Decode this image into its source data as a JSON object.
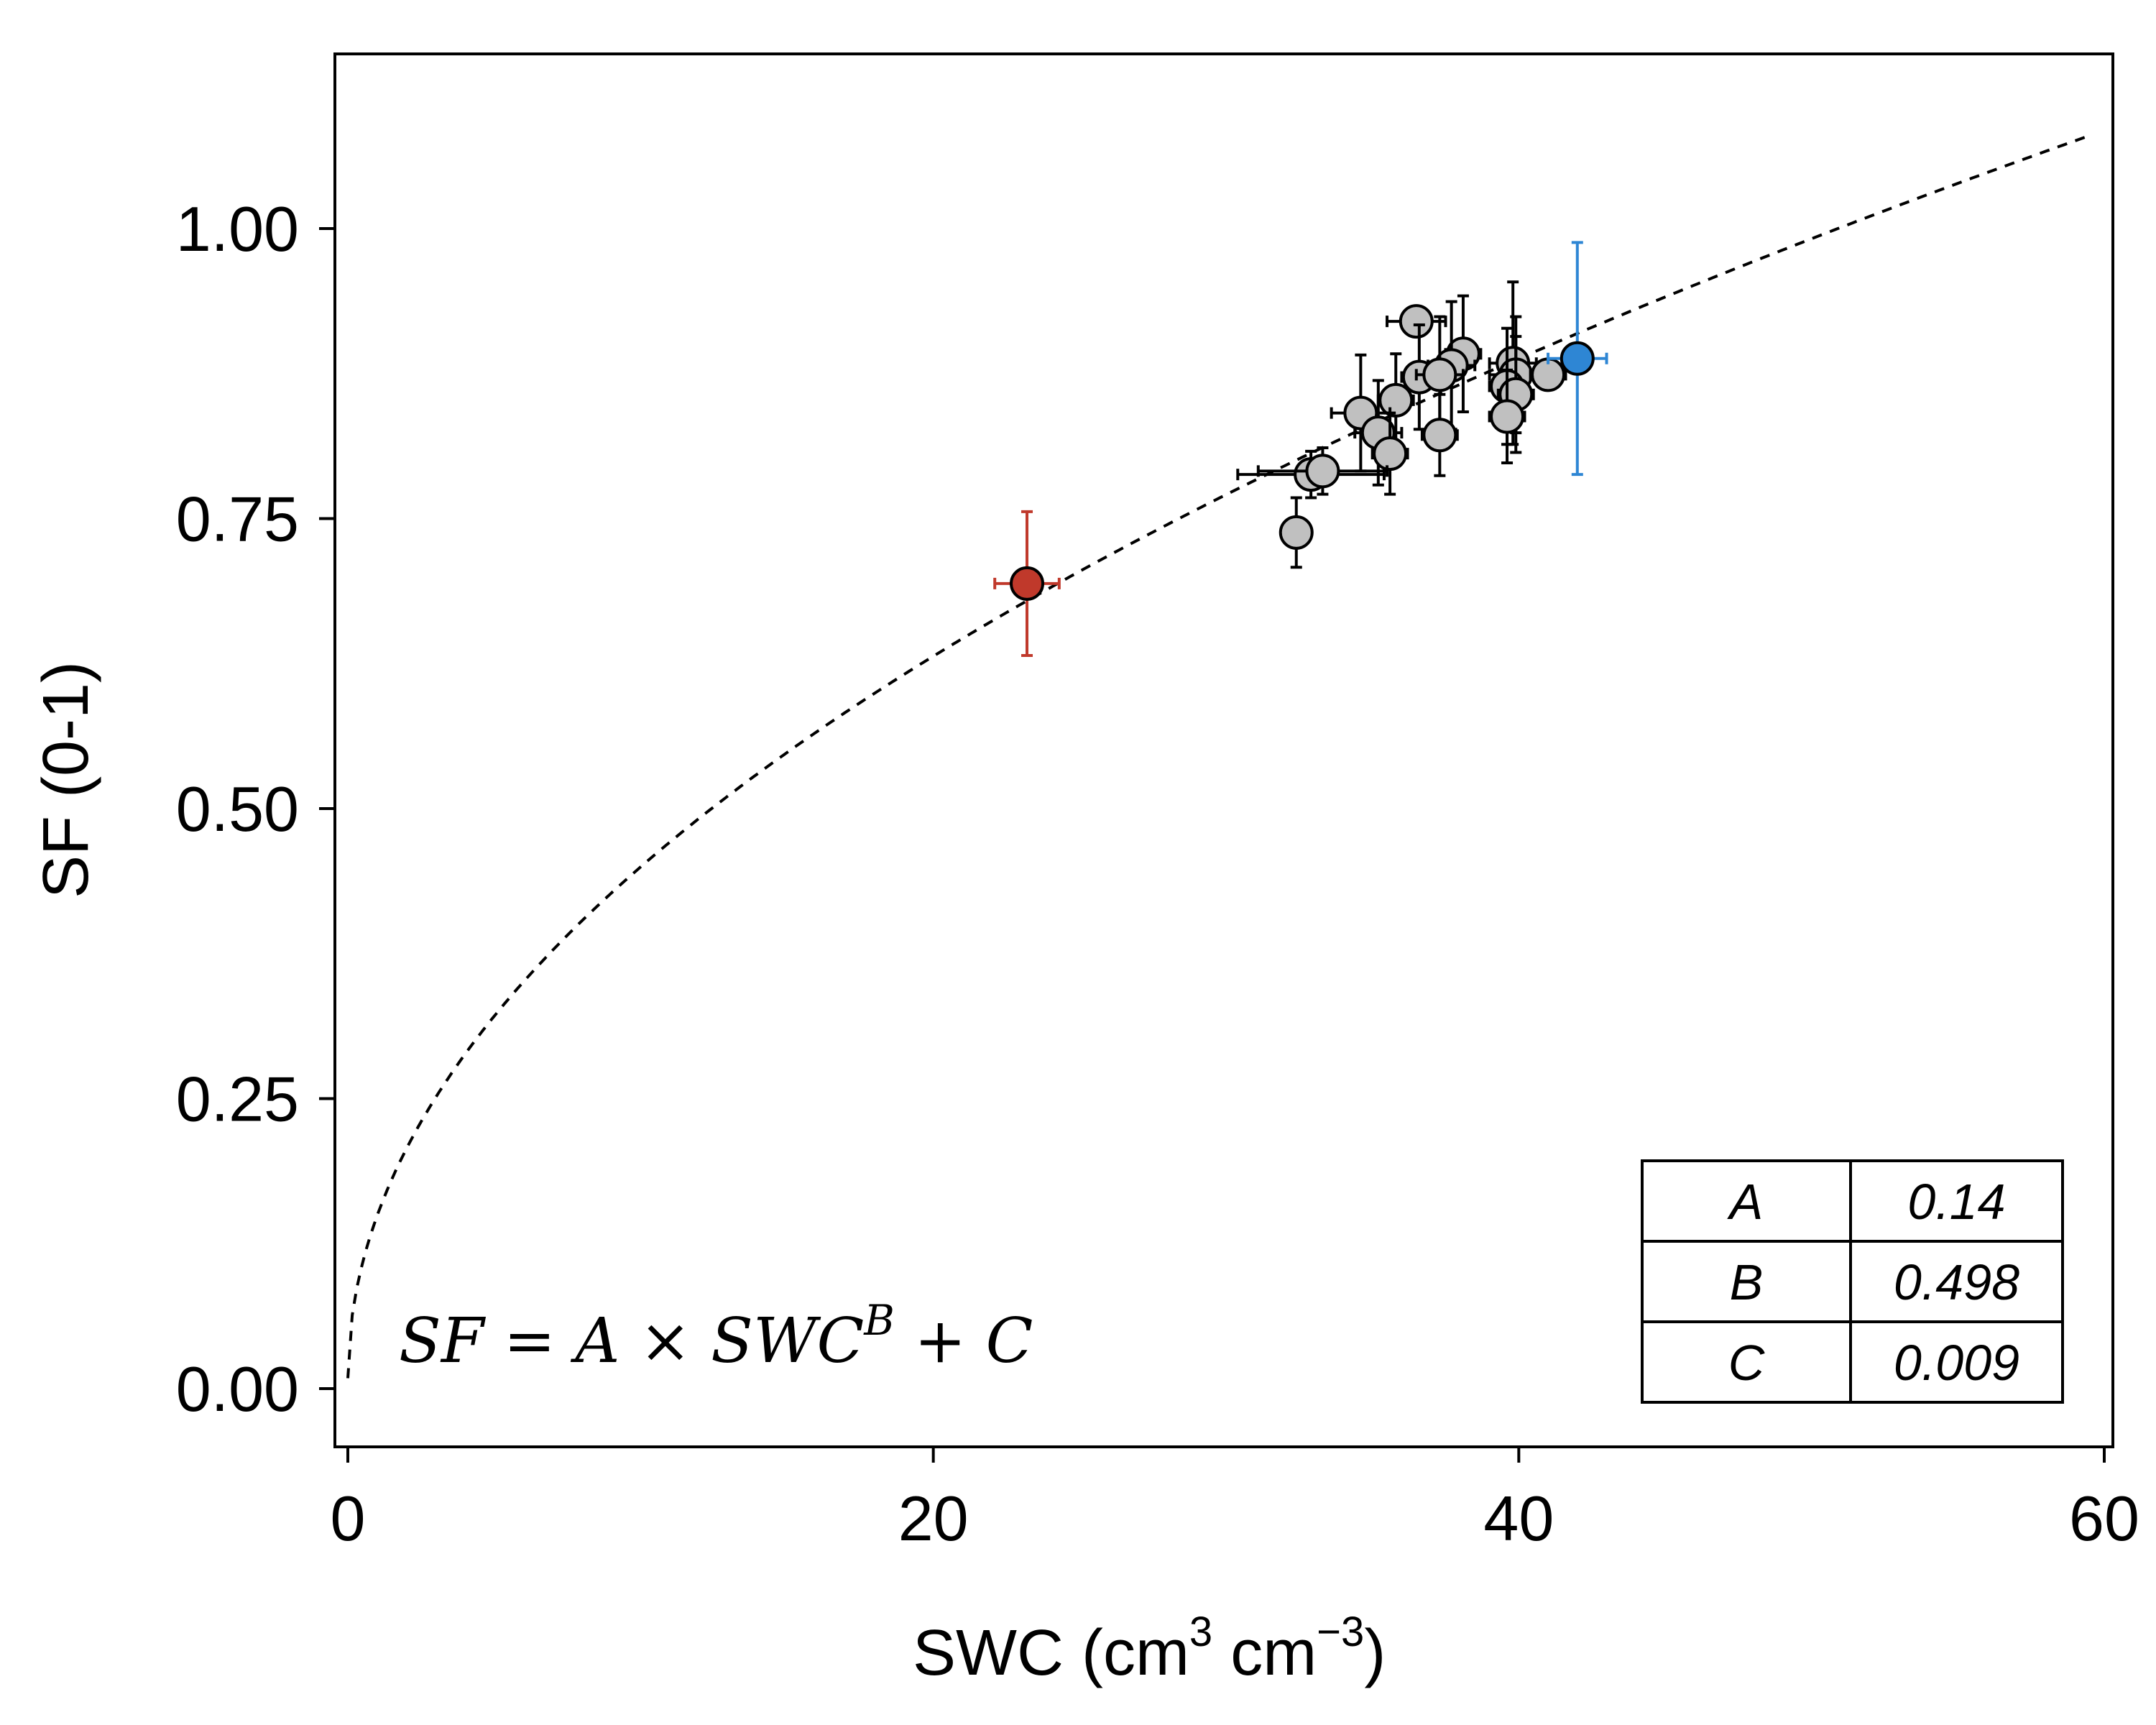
{
  "chart_data": {
    "type": "scatter",
    "xlabel": "SWC (cm",
    "xlabel_unit_sup1": "3",
    "xlabel_unit_mid": " cm",
    "xlabel_unit_sup2": "−3",
    "xlabel_close": ")",
    "ylabel": "SF (0-1)",
    "xlim": [
      0,
      60
    ],
    "ylim": [
      -0.05,
      1.15
    ],
    "xticks": [
      0,
      20,
      40,
      60
    ],
    "xtick_labels": [
      "0",
      "20",
      "40",
      "60"
    ],
    "yticks": [
      0.0,
      0.25,
      0.5,
      0.75,
      1.0
    ],
    "ytick_labels": [
      "0.00",
      "0.25",
      "0.50",
      "0.75",
      "1.00"
    ],
    "grid": false,
    "equation": "SF = A × SWCᴮ + C",
    "equation_parts": {
      "lhs": "SF = A × SWC",
      "sup": "B",
      "rhs": " + C"
    },
    "fit": {
      "A": 0.14,
      "B": 0.498,
      "C": 0.009,
      "style": "dashed",
      "x_range": [
        0,
        59.5
      ]
    },
    "param_table": [
      {
        "name": "A",
        "value": "0.14"
      },
      {
        "name": "B",
        "value": "0.498"
      },
      {
        "name": "C",
        "value": "0.009"
      }
    ],
    "series": [
      {
        "color": "#c0c0c0",
        "error_color": "#000000",
        "points": [
          {
            "x": 36.5,
            "y": 0.92,
            "xerr": 1.0,
            "yerr": 0.0
          },
          {
            "x": 38.1,
            "y": 0.892,
            "xerr": 0.6,
            "yerr": 0.05
          },
          {
            "x": 37.7,
            "y": 0.882,
            "xerr": 0.8,
            "yerr": 0.055
          },
          {
            "x": 39.8,
            "y": 0.884,
            "xerr": 0.8,
            "yerr": 0.07
          },
          {
            "x": 39.9,
            "y": 0.874,
            "xerr": 0.9,
            "yerr": 0.05
          },
          {
            "x": 41.0,
            "y": 0.874,
            "xerr": 0.6,
            "yerr": 0.0
          },
          {
            "x": 39.6,
            "y": 0.864,
            "xerr": 0.6,
            "yerr": 0.05
          },
          {
            "x": 39.9,
            "y": 0.857,
            "xerr": 0.6,
            "yerr": 0.05
          },
          {
            "x": 36.6,
            "y": 0.872,
            "xerr": 0.6,
            "yerr": 0.045
          },
          {
            "x": 37.3,
            "y": 0.874,
            "xerr": 0.8,
            "yerr": 0.05
          },
          {
            "x": 35.8,
            "y": 0.852,
            "xerr": 0.6,
            "yerr": 0.04
          },
          {
            "x": 34.6,
            "y": 0.841,
            "xerr": 1.0,
            "yerr": 0.05
          },
          {
            "x": 35.2,
            "y": 0.824,
            "xerr": 0.8,
            "yerr": 0.045
          },
          {
            "x": 35.6,
            "y": 0.806,
            "xerr": 0.6,
            "yerr": 0.035
          },
          {
            "x": 37.3,
            "y": 0.822,
            "xerr": 0.6,
            "yerr": 0.035
          },
          {
            "x": 39.6,
            "y": 0.838,
            "xerr": 0.6,
            "yerr": 0.04
          },
          {
            "x": 32.9,
            "y": 0.788,
            "xerr": 2.5,
            "yerr": 0.02
          },
          {
            "x": 33.3,
            "y": 0.791,
            "xerr": 2.2,
            "yerr": 0.02
          },
          {
            "x": 32.4,
            "y": 0.738,
            "xerr": 0.4,
            "yerr": 0.03
          }
        ]
      },
      {
        "color": "#c0392b",
        "error_color": "#c0392b",
        "points": [
          {
            "x": 23.2,
            "y": 0.694,
            "xerr": 1.1,
            "yerr": 0.062
          }
        ]
      },
      {
        "color": "#2e86d4",
        "error_color": "#2e86d4",
        "points": [
          {
            "x": 42.0,
            "y": 0.888,
            "xerr": 1.0,
            "yerr": 0.1
          }
        ]
      }
    ]
  }
}
